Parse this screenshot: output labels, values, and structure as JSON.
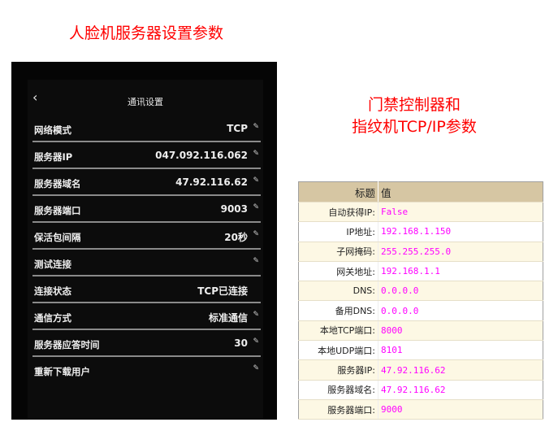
{
  "titles": {
    "left": "人脸机服务器设置参数",
    "right_line1": "门禁控制器和",
    "right_line2": "指纹机TCP/IP参数"
  },
  "device": {
    "header": {
      "back_icon": "chevron-left-icon",
      "title": "通讯设置"
    },
    "rows": [
      {
        "label": "网络模式",
        "value": "TCP",
        "editable": true
      },
      {
        "label": "服务器IP",
        "value": "047.092.116.062",
        "editable": true
      },
      {
        "label": "服务器域名",
        "value": "47.92.116.62",
        "editable": true
      },
      {
        "label": "服务器端口",
        "value": "9003",
        "editable": true
      },
      {
        "label": "保活包间隔",
        "value": "20秒",
        "editable": true
      },
      {
        "label": "测试连接",
        "value": "",
        "editable": true
      },
      {
        "label": "连接状态",
        "value": "TCP已连接",
        "editable": false
      },
      {
        "label": "通信方式",
        "value": "标准通信",
        "editable": true
      },
      {
        "label": "服务器应答时间",
        "value": "30",
        "editable": true
      },
      {
        "label": "重新下载用户",
        "value": "",
        "editable": true
      }
    ]
  },
  "table": {
    "headers": [
      "标题",
      "值"
    ],
    "value_color": "#ff00ff",
    "header_bg": "#d6c6a3",
    "rows": [
      [
        "自动获得IP:",
        "False"
      ],
      [
        "IP地址:",
        "192.168.1.150"
      ],
      [
        "子网掩码:",
        "255.255.255.0"
      ],
      [
        "网关地址:",
        "192.168.1.1"
      ],
      [
        "DNS:",
        "0.0.0.0"
      ],
      [
        "备用DNS:",
        "0.0.0.0"
      ],
      [
        "本地TCP端口:",
        "8000"
      ],
      [
        "本地UDP端口:",
        "8101"
      ],
      [
        "服务器IP:",
        "47.92.116.62"
      ],
      [
        "服务器域名:",
        "47.92.116.62"
      ],
      [
        "服务器端口:",
        "9000"
      ]
    ]
  }
}
